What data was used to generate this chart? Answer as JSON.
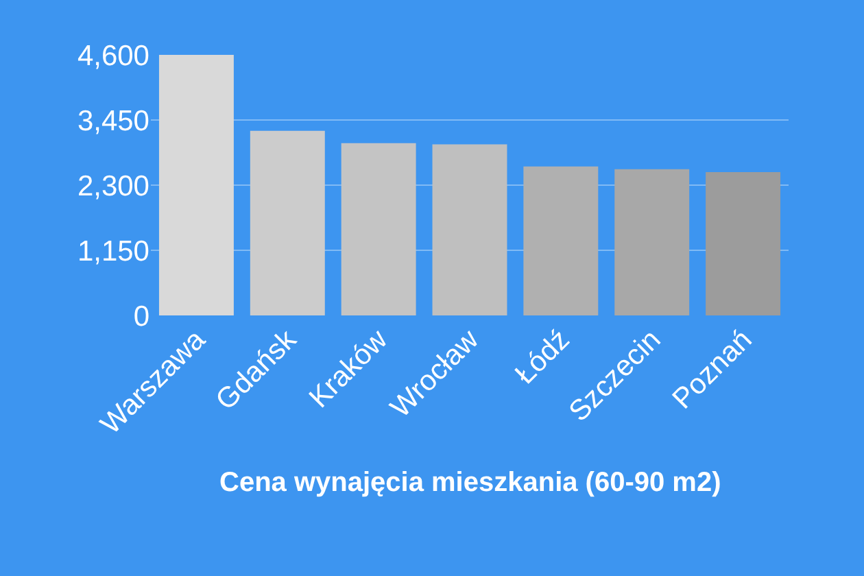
{
  "chart_data": {
    "type": "bar",
    "title": "Cena wynajęcia mieszkania (60-90 m2)",
    "categories": [
      "Warszawa",
      "Gdańsk",
      "Kraków",
      "Wrocław",
      "Łódź",
      "Szczecin",
      "Poznań"
    ],
    "values": [
      4600,
      3260,
      3040,
      3020,
      2630,
      2580,
      2530
    ],
    "colors": [
      "#d9d9d9",
      "#cccccc",
      "#c4c4c4",
      "#bfbfbf",
      "#b0b0b0",
      "#a8a8a8",
      "#9c9c9c"
    ],
    "ylim": [
      0,
      4600
    ],
    "yticks": [
      0,
      {
        "value": 1150,
        "label": "1,150"
      },
      {
        "value": 2300,
        "label": "2,300"
      },
      {
        "value": 3450,
        "label": "3,450"
      },
      {
        "value": 4600,
        "label": "4,600"
      }
    ],
    "grid": "y"
  }
}
